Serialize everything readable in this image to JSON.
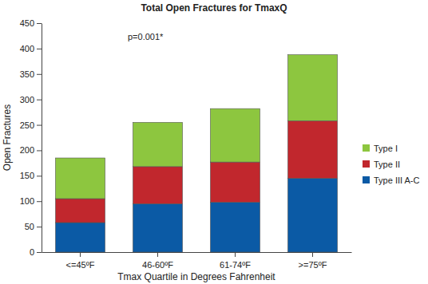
{
  "chart_data": {
    "type": "bar",
    "title": "Total Open Fractures for TmaxQ",
    "x_label": "Tmax Quartile in Degrees Fahrenheit",
    "y_label": "Open Fractures",
    "annotation": "p=0.001*",
    "categories": [
      "<=45ºF",
      "46-60ºF",
      "61-74ºF",
      ">=75ºF"
    ],
    "series": [
      {
        "name": "Type I",
        "color": "#8dc63f",
        "values": [
          80,
          87,
          105,
          130
        ]
      },
      {
        "name": "Type II",
        "color": "#c1272d",
        "values": [
          47,
          73,
          79,
          113
        ]
      },
      {
        "name": "Type III A-C",
        "color": "#0b5aa5",
        "values": [
          58,
          95,
          98,
          145
        ]
      }
    ],
    "ylim": [
      0,
      450
    ],
    "yticks": [
      0,
      50,
      100,
      150,
      200,
      250,
      300,
      350,
      400,
      450
    ],
    "stacked": true,
    "legend": "right"
  }
}
